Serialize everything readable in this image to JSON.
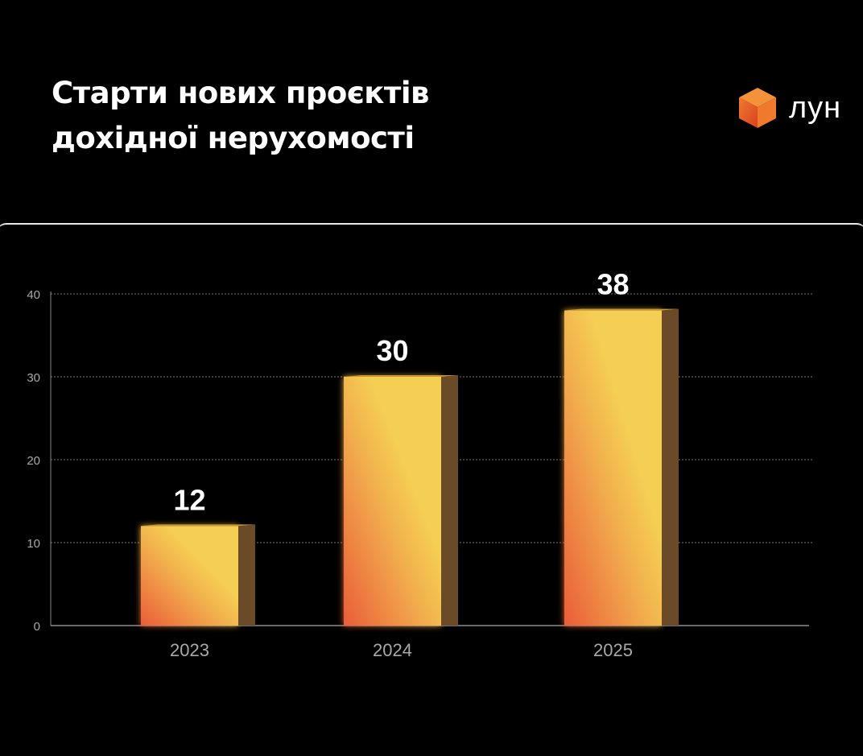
{
  "header": {
    "title_line1": "Старти нових проєктів",
    "title_line2": "дохідної нерухомості",
    "logo_text": "лун"
  },
  "colors": {
    "bar_top": "#f5cf52",
    "bar_bottom": "#ea5d38",
    "bar_side": "#6b4a28",
    "background": "#000000"
  },
  "chart_data": {
    "type": "bar",
    "title": "Старти нових проєктів дохідної нерухомості",
    "categories": [
      "2023",
      "2024",
      "2025"
    ],
    "values": [
      12,
      30,
      38
    ],
    "data_labels": [
      "12",
      "30",
      "38"
    ],
    "xlabel": "",
    "ylabel": "",
    "ylim": [
      0,
      40
    ],
    "yticks": [
      "0",
      "10",
      "20",
      "30",
      "40"
    ],
    "grid": true
  }
}
